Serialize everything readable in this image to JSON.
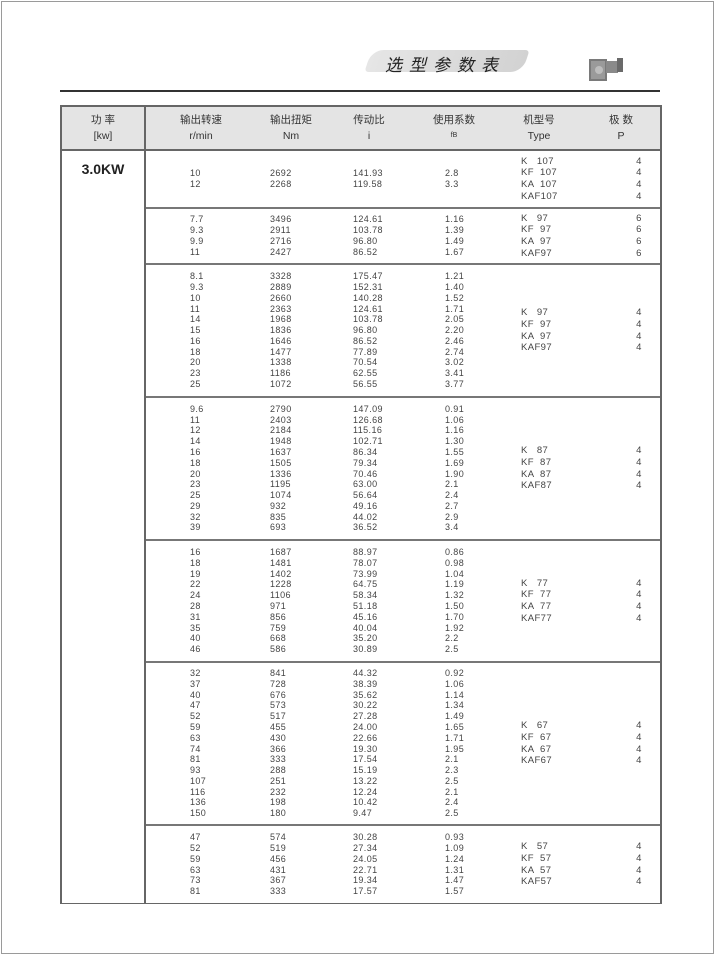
{
  "header": {
    "title": "选型参数表",
    "image": "gear-motor-icon"
  },
  "table": {
    "columns": [
      {
        "cn": "功 率",
        "en": "[kw]"
      },
      {
        "cn": "输出转速",
        "en": "r/min"
      },
      {
        "cn": "输出扭矩",
        "en": "Nm"
      },
      {
        "cn": "传动比",
        "en": "i"
      },
      {
        "cn": "使用系数",
        "en": "fB"
      },
      {
        "cn": "机型号",
        "en": "Type"
      },
      {
        "cn": "极 数",
        "en": "P"
      }
    ],
    "power": "3.0KW",
    "blocks": [
      {
        "speed": [
          "10",
          "12"
        ],
        "torque": [
          "2692",
          "2268"
        ],
        "ratio": [
          "141.93",
          "119.58"
        ],
        "fb": [
          "2.8",
          "3.3"
        ],
        "types": [
          "K   107",
          "KF  107",
          "KA  107",
          "KAF107"
        ],
        "poles": [
          "4",
          "4",
          "4",
          "4"
        ]
      },
      {
        "speed": [
          "7.7",
          "9.3",
          "9.9",
          "11"
        ],
        "torque": [
          "3496",
          "2911",
          "2716",
          "2427"
        ],
        "ratio": [
          "124.61",
          "103.78",
          "96.80",
          "86.52"
        ],
        "fb": [
          "1.16",
          "1.39",
          "1.49",
          "1.67"
        ],
        "types": [
          "K   97",
          "KF  97",
          "KA  97",
          "KAF97"
        ],
        "poles": [
          "6",
          "6",
          "6",
          "6"
        ]
      },
      {
        "speed": [
          "8.1",
          "9.3",
          "10",
          "11",
          "14",
          "15",
          "16",
          "18",
          "20",
          "23",
          "25"
        ],
        "torque": [
          "3328",
          "2889",
          "2660",
          "2363",
          "1968",
          "1836",
          "1646",
          "1477",
          "1338",
          "1186",
          "1072"
        ],
        "ratio": [
          "175.47",
          "152.31",
          "140.28",
          "124.61",
          "103.78",
          "96.80",
          "86.52",
          "77.89",
          "70.54",
          "62.55",
          "56.55"
        ],
        "fb": [
          "1.21",
          "1.40",
          "1.52",
          "1.71",
          "2.05",
          "2.20",
          "2.46",
          "2.74",
          "3.02",
          "3.41",
          "3.77"
        ],
        "types": [
          "K   97",
          "KF  97",
          "KA  97",
          "KAF97"
        ],
        "poles": [
          "4",
          "4",
          "4",
          "4"
        ]
      },
      {
        "speed": [
          "9.6",
          "11",
          "12",
          "14",
          "16",
          "18",
          "20",
          "23",
          "25",
          "29",
          "32",
          "39"
        ],
        "torque": [
          "2790",
          "2403",
          "2184",
          "1948",
          "1637",
          "1505",
          "1336",
          "1195",
          "1074",
          "932",
          "835",
          "693"
        ],
        "ratio": [
          "147.09",
          "126.68",
          "115.16",
          "102.71",
          "86.34",
          "79.34",
          "70.46",
          "63.00",
          "56.64",
          "49.16",
          "44.02",
          "36.52"
        ],
        "fb": [
          "0.91",
          "1.06",
          "1.16",
          "1.30",
          "1.55",
          "1.69",
          "1.90",
          "2.1",
          "2.4",
          "2.7",
          "2.9",
          "3.4"
        ],
        "types": [
          "K   87",
          "KF  87",
          "KA  87",
          "KAF87"
        ],
        "poles": [
          "4",
          "4",
          "4",
          "4"
        ]
      },
      {
        "speed": [
          "16",
          "18",
          "19",
          "22",
          "24",
          "28",
          "31",
          "35",
          "40",
          "46"
        ],
        "torque": [
          "1687",
          "1481",
          "1402",
          "1228",
          "1106",
          "971",
          "856",
          "759",
          "668",
          "586"
        ],
        "ratio": [
          "88.97",
          "78.07",
          "73.99",
          "64.75",
          "58.34",
          "51.18",
          "45.16",
          "40.04",
          "35.20",
          "30.89"
        ],
        "fb": [
          "0.86",
          "0.98",
          "1.04",
          "1.19",
          "1.32",
          "1.50",
          "1.70",
          "1.92",
          "2.2",
          "2.5"
        ],
        "types": [
          "K   77",
          "KF  77",
          "KA  77",
          "KAF77"
        ],
        "poles": [
          "4",
          "4",
          "4",
          "4"
        ]
      },
      {
        "speed": [
          "32",
          "37",
          "40",
          "47",
          "52",
          "59",
          "63",
          "74",
          "81",
          "93",
          "107",
          "116",
          "136",
          "150"
        ],
        "torque": [
          "841",
          "728",
          "676",
          "573",
          "517",
          "455",
          "430",
          "366",
          "333",
          "288",
          "251",
          "232",
          "198",
          "180"
        ],
        "ratio": [
          "44.32",
          "38.39",
          "35.62",
          "30.22",
          "27.28",
          "24.00",
          "22.66",
          "19.30",
          "17.54",
          "15.19",
          "13.22",
          "12.24",
          "10.42",
          "9.47"
        ],
        "fb": [
          "0.92",
          "1.06",
          "1.14",
          "1.34",
          "1.49",
          "1.65",
          "1.71",
          "1.95",
          "2.1",
          "2.3",
          "2.5",
          "2.1",
          "2.4",
          "2.5"
        ],
        "types": [
          "K   67",
          "KF  67",
          "KA  67",
          "KAF67"
        ],
        "poles": [
          "4",
          "4",
          "4",
          "4"
        ]
      },
      {
        "speed": [
          "47",
          "52",
          "59",
          "63",
          "73",
          "81"
        ],
        "torque": [
          "574",
          "519",
          "456",
          "431",
          "367",
          "333"
        ],
        "ratio": [
          "30.28",
          "27.34",
          "24.05",
          "22.71",
          "19.34",
          "17.57"
        ],
        "fb": [
          "0.93",
          "1.09",
          "1.24",
          "1.31",
          "1.47",
          "1.57"
        ],
        "types": [
          "K   57",
          "KF  57",
          "KA  57",
          "KAF57"
        ],
        "poles": [
          "4",
          "4",
          "4",
          "4"
        ]
      }
    ]
  }
}
